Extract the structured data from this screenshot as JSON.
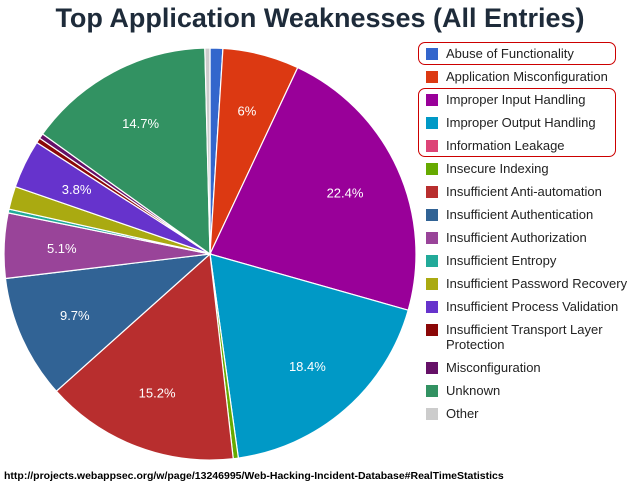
{
  "header": {
    "title": "Top Application Weaknesses (All Entries)"
  },
  "footer": {
    "source": "http://projects.webappsec.org/w/page/13246995/Web-Hacking-Incident-Database#RealTimeStatistics"
  },
  "chart_data": {
    "type": "pie",
    "title": "Top Application Weaknesses (All Entries)",
    "legend_position": "right",
    "highlighted": [
      "Abuse of Functionality",
      "Improper Input Handling",
      "Improper Output Handling",
      "Information Leakage"
    ],
    "slices": [
      {
        "name": "Abuse of Functionality",
        "value": 1.0,
        "label": "",
        "color": "#3366cc"
      },
      {
        "name": "Application Misconfiguration",
        "value": 6.0,
        "label": "6%",
        "color": "#dc3912"
      },
      {
        "name": "Improper Input Handling",
        "value": 22.4,
        "label": "22.4%",
        "color": "#990099"
      },
      {
        "name": "Improper Output Handling",
        "value": 18.4,
        "label": "18.4%",
        "color": "#0099c6"
      },
      {
        "name": "Information Leakage",
        "value": 0.0,
        "label": "",
        "color": "#dd4477"
      },
      {
        "name": "Insecure Indexing",
        "value": 0.4,
        "label": "",
        "color": "#66aa00"
      },
      {
        "name": "Insufficient Anti-automation",
        "value": 15.2,
        "label": "15.2%",
        "color": "#b82e2e"
      },
      {
        "name": "Insufficient Authentication",
        "value": 9.7,
        "label": "9.7%",
        "color": "#316395"
      },
      {
        "name": "Insufficient Authorization",
        "value": 5.1,
        "label": "5.1%",
        "color": "#994499"
      },
      {
        "name": "Insufficient Entropy",
        "value": 0.3,
        "label": "",
        "color": "#22aa99"
      },
      {
        "name": "Insufficient Password Recovery",
        "value": 1.8,
        "label": "",
        "color": "#aaaa11"
      },
      {
        "name": "Insufficient Process Validation",
        "value": 3.8,
        "label": "3.8%",
        "color": "#6633cc"
      },
      {
        "name": "Insufficient Transport Layer Protection",
        "value": 0.4,
        "label": "",
        "color": "#8b0707"
      },
      {
        "name": "Misconfiguration",
        "value": 0.4,
        "label": "",
        "color": "#651067"
      },
      {
        "name": "Unknown",
        "value": 14.7,
        "label": "14.7%",
        "color": "#329262"
      },
      {
        "name": "Other",
        "value": 0.4,
        "label": "",
        "color": "#cccccc"
      }
    ]
  }
}
